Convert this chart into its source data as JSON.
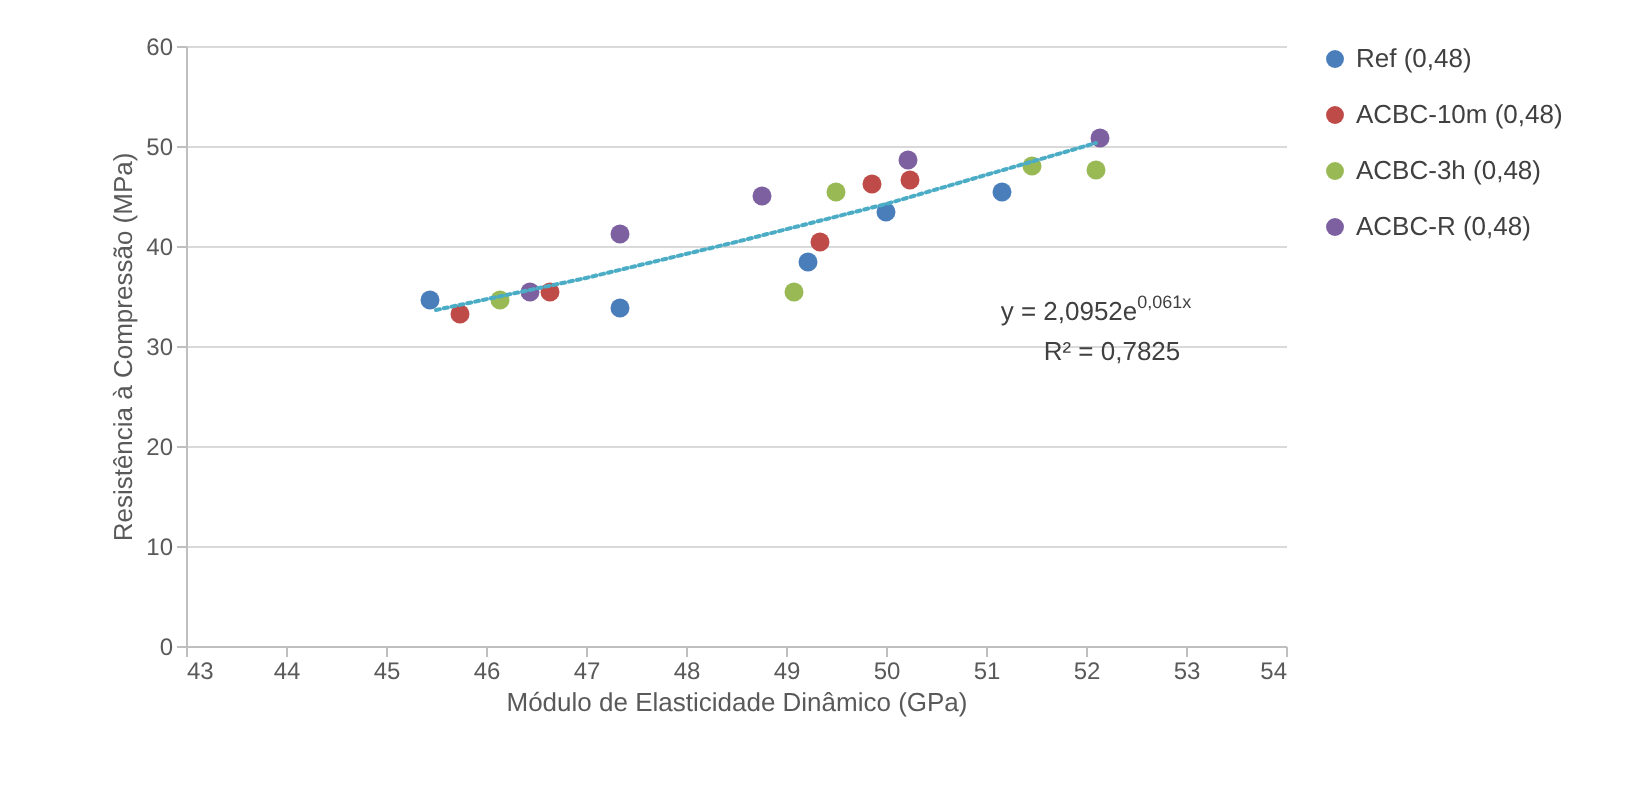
{
  "chart_data": {
    "type": "scatter",
    "xlabel": "Módulo de Elasticidade Dinâmico (GPa)",
    "ylabel": "Resistência à Compressão (MPa)",
    "xlim": [
      43,
      54
    ],
    "xticks": [
      43,
      44,
      45,
      46,
      47,
      48,
      49,
      50,
      51,
      52,
      53,
      54
    ],
    "ylim": [
      0,
      60
    ],
    "yticks": [
      0,
      10,
      20,
      30,
      40,
      50,
      60
    ],
    "grid": "y",
    "legend": "right",
    "marker": "circle",
    "series": [
      {
        "name": "Ref (0,48)",
        "color": "#4a7ebb",
        "x": [
          45.44,
          47.34,
          49.22,
          50.0,
          51.16
        ],
        "values": [
          34.6,
          33.8,
          38.4,
          43.4,
          45.4
        ]
      },
      {
        "name": "ACBC-10m (0,48)",
        "color": "#be4b48",
        "x": [
          45.74,
          46.64,
          49.34,
          49.86,
          50.24
        ],
        "values": [
          33.2,
          35.4,
          40.4,
          46.2,
          46.6
        ]
      },
      {
        "name": "ACBC-3h (0,48)",
        "color": "#98b954",
        "x": [
          46.14,
          49.08,
          49.5,
          51.46,
          52.1
        ],
        "values": [
          34.6,
          35.4,
          45.4,
          48,
          47.6
        ]
      },
      {
        "name": "ACBC-R (0,48)",
        "color": "#7d60a0",
        "x": [
          46.44,
          47.34,
          48.76,
          50.22,
          52.14
        ],
        "values": [
          35.4,
          41.2,
          45,
          48.6,
          50.8
        ]
      },
      {
        "type": "line",
        "color": "#4bacc6",
        "line_style": "dotted",
        "marker": "none",
        "x": [
          45.5,
          47,
          48.5,
          50,
          52.1
        ],
        "values": [
          33.6,
          36.8,
          40.4,
          44.2,
          50.3
        ]
      }
    ],
    "annotations": [
      "y = 2,0952e$^{0,061x}$",
      "R² = 0,7825"
    ]
  }
}
